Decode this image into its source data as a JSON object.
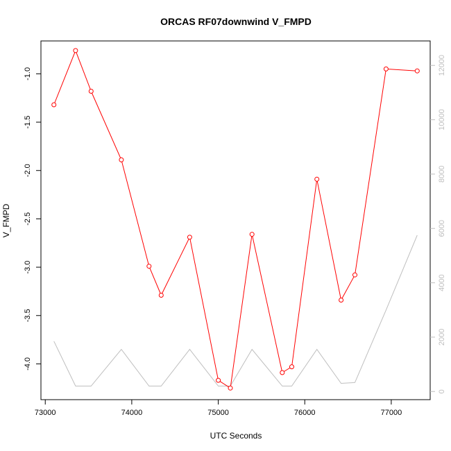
{
  "chart_data": {
    "type": "line",
    "title": "ORCAS RF07downwind V_FMPD",
    "xlabel": "UTC Seconds",
    "ylabel": "V_FMPD",
    "xlim": [
      72950,
      77450
    ],
    "ylim": [
      -4.37,
      -0.66
    ],
    "y2lim": [
      -300,
      12900
    ],
    "x_ticks": [
      73000,
      74000,
      75000,
      76000,
      77000
    ],
    "y_ticks": [
      -4.0,
      -3.5,
      -3.0,
      -2.5,
      -2.0,
      -1.5,
      -1.0
    ],
    "y_tick_labels": [
      "-4.0",
      "-3.5",
      "-3.0",
      "-2.5",
      "-2.0",
      "-1.5",
      "-1.0"
    ],
    "y2_ticks": [
      0,
      2000,
      4000,
      6000,
      8000,
      10000,
      12000
    ],
    "grid": false,
    "legend": "none",
    "colors": {
      "primary": "#ff0000",
      "secondary": "#bebebe"
    },
    "series": [
      {
        "axis": "left",
        "style": "line-with-open-circles",
        "color": "#ff0000",
        "x": [
          73100,
          73350,
          73530,
          73880,
          74200,
          74340,
          74670,
          75000,
          75140,
          75390,
          75740,
          75850,
          76140,
          76420,
          76580,
          76940,
          77300
        ],
        "y": [
          -1.32,
          -0.76,
          -1.18,
          -1.89,
          -2.99,
          -3.29,
          -2.69,
          -4.17,
          -4.25,
          -2.66,
          -4.09,
          -4.03,
          -2.09,
          -3.34,
          -3.08,
          -0.95,
          -0.97
        ]
      },
      {
        "axis": "right",
        "style": "line",
        "color": "#bebebe",
        "x": [
          73100,
          73350,
          73530,
          73880,
          74200,
          74340,
          74670,
          75000,
          75140,
          75390,
          75740,
          75850,
          76140,
          76420,
          76580,
          76940,
          77300
        ],
        "y": [
          1850,
          200,
          200,
          1550,
          200,
          200,
          1550,
          200,
          200,
          1550,
          200,
          200,
          1550,
          300,
          330,
          3000,
          5750
        ]
      }
    ]
  }
}
